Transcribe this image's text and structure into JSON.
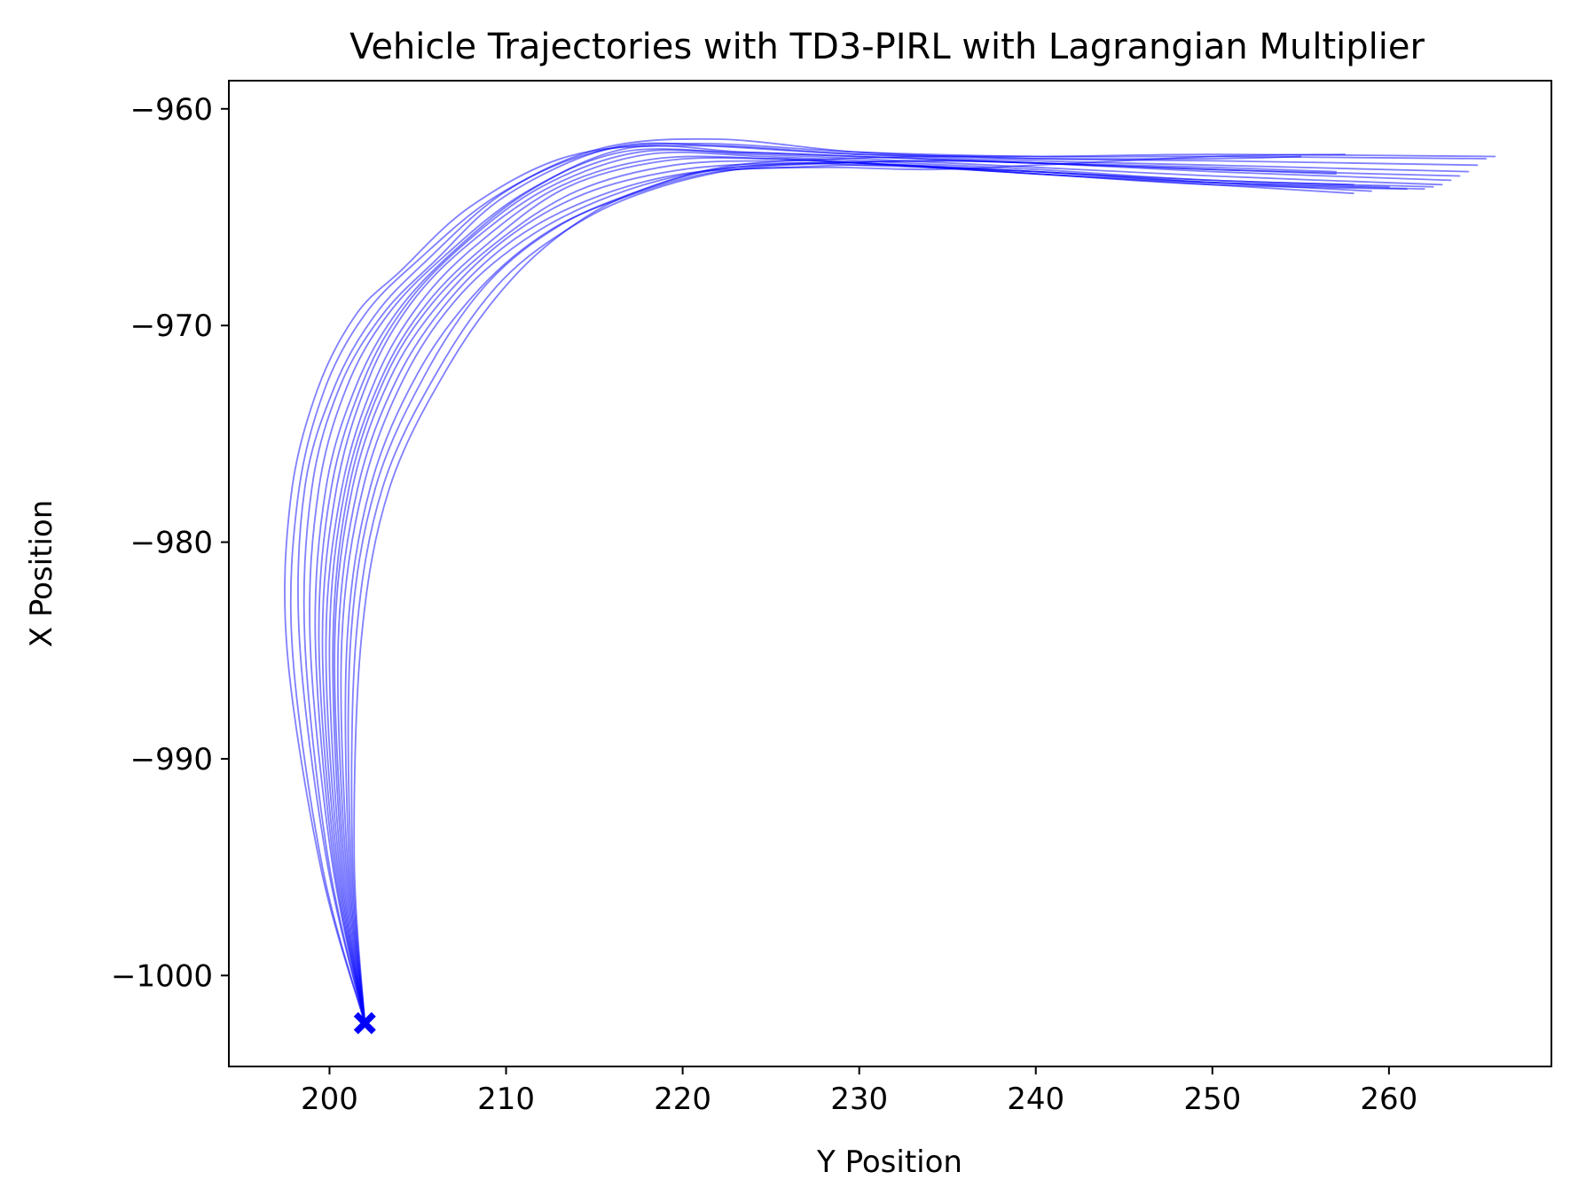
{
  "chart_data": {
    "type": "line",
    "title": "Vehicle Trajectories with TD3-PIRL with Lagrangian Multiplier",
    "xlabel": "Y Position",
    "ylabel": "X Position",
    "xlim": [
      194.3,
      269.2
    ],
    "ylim": [
      -1004.2,
      -958.7
    ],
    "xticks": [
      200,
      210,
      220,
      230,
      240,
      250,
      260
    ],
    "xtick_labels": [
      "200",
      "210",
      "220",
      "230",
      "240",
      "250",
      "260"
    ],
    "yticks": [
      -960,
      -970,
      -980,
      -990,
      -1000
    ],
    "ytick_labels": [
      "−960",
      "−970",
      "−980",
      "−990",
      "−1000"
    ],
    "grid": false,
    "line_color": "#0000ff",
    "line_alpha": 0.5,
    "start_marker": {
      "x": 202.0,
      "y": -1002.2,
      "symbol": "X",
      "color": "#0000ff"
    },
    "series": [
      {
        "name": "trajectory-1",
        "x": [
          202.0,
          199.5,
          197.6,
          197.8,
          199.3,
          201.5,
          204.0,
          208.0,
          213.5,
          220.0,
          230.0,
          240.0,
          250.0,
          266.0
        ],
        "y": [
          -1002.2,
          -995.0,
          -985.0,
          -978.0,
          -973.0,
          -969.5,
          -967.5,
          -964.5,
          -962.2,
          -961.7,
          -962.1,
          -962.2,
          -962.1,
          -962.2
        ]
      },
      {
        "name": "trajectory-2",
        "x": [
          202.0,
          199.6,
          197.9,
          198.2,
          199.7,
          202.0,
          205.0,
          209.5,
          215.0,
          221.0,
          230.0,
          240.0,
          250.0,
          265.5
        ],
        "y": [
          -1002.2,
          -995.0,
          -985.0,
          -978.0,
          -973.0,
          -969.5,
          -967.0,
          -964.0,
          -962.0,
          -961.6,
          -962.0,
          -962.2,
          -962.2,
          -962.3
        ]
      },
      {
        "name": "trajectory-3",
        "x": [
          202.0,
          199.8,
          198.3,
          198.6,
          200.3,
          202.6,
          205.5,
          210.0,
          215.5,
          222.0,
          230.0,
          240.0,
          250.0,
          265.0
        ],
        "y": [
          -1002.2,
          -994.5,
          -984.5,
          -977.5,
          -972.8,
          -969.5,
          -967.0,
          -963.8,
          -961.8,
          -961.4,
          -962.0,
          -962.3,
          -962.4,
          -962.6
        ]
      },
      {
        "name": "trajectory-4",
        "x": [
          202.0,
          199.9,
          198.6,
          199.0,
          200.6,
          203.0,
          206.0,
          210.0,
          216.0,
          222.0,
          230.0,
          240.0,
          250.0,
          264.5
        ],
        "y": [
          -1002.2,
          -994.5,
          -984.5,
          -977.5,
          -972.8,
          -969.5,
          -967.0,
          -964.0,
          -961.8,
          -961.7,
          -962.1,
          -962.4,
          -962.6,
          -962.9
        ]
      },
      {
        "name": "trajectory-5",
        "x": [
          202.0,
          200.1,
          198.9,
          199.4,
          201.0,
          203.3,
          206.5,
          211.0,
          216.5,
          223.0,
          230.0,
          240.0,
          250.0,
          264.0
        ],
        "y": [
          -1002.2,
          -994.5,
          -984.5,
          -977.5,
          -972.8,
          -969.5,
          -966.8,
          -963.9,
          -962.0,
          -962.0,
          -962.2,
          -962.5,
          -962.8,
          -963.1
        ]
      },
      {
        "name": "trajectory-6",
        "x": [
          202.0,
          200.2,
          199.2,
          199.8,
          201.5,
          203.8,
          207.0,
          211.5,
          217.0,
          223.5,
          230.0,
          240.0,
          250.0,
          263.5
        ],
        "y": [
          -1002.2,
          -994.5,
          -984.5,
          -977.5,
          -972.8,
          -969.4,
          -966.6,
          -963.7,
          -961.8,
          -962.0,
          -962.2,
          -962.5,
          -962.9,
          -963.3
        ]
      },
      {
        "name": "trajectory-7",
        "x": [
          202.0,
          200.3,
          199.4,
          200.1,
          201.9,
          204.2,
          207.4,
          212.0,
          217.5,
          224.0,
          230.0,
          240.0,
          250.0,
          263.0
        ],
        "y": [
          -1002.2,
          -994.5,
          -984.5,
          -977.5,
          -972.6,
          -969.2,
          -966.4,
          -963.6,
          -962.0,
          -962.1,
          -962.3,
          -962.7,
          -963.1,
          -963.5
        ]
      },
      {
        "name": "trajectory-8",
        "x": [
          202.0,
          200.4,
          199.6,
          200.4,
          202.2,
          204.6,
          207.8,
          212.5,
          218.0,
          224.5,
          230.0,
          240.0,
          250.0,
          262.5
        ],
        "y": [
          -1002.2,
          -994.5,
          -984.5,
          -977.5,
          -972.5,
          -969.0,
          -966.3,
          -963.6,
          -962.1,
          -962.2,
          -962.4,
          -962.8,
          -963.3,
          -963.6
        ]
      },
      {
        "name": "trajectory-9",
        "x": [
          202.0,
          200.5,
          199.8,
          200.7,
          202.6,
          205.1,
          208.3,
          213.0,
          218.5,
          225.0,
          230.0,
          240.0,
          250.0,
          262.0
        ],
        "y": [
          -1002.2,
          -994.5,
          -984.5,
          -977.5,
          -972.5,
          -969.0,
          -966.3,
          -963.6,
          -962.3,
          -962.3,
          -962.5,
          -962.9,
          -963.4,
          -963.7
        ]
      },
      {
        "name": "trajectory-10",
        "x": [
          202.0,
          200.6,
          200.0,
          200.9,
          202.9,
          205.5,
          209.0,
          213.5,
          219.0,
          225.0,
          230.0,
          240.0,
          250.0,
          261.0
        ],
        "y": [
          -1002.2,
          -994.5,
          -984.5,
          -977.5,
          -972.5,
          -969.0,
          -966.2,
          -963.6,
          -962.4,
          -962.3,
          -962.5,
          -963.0,
          -963.5,
          -963.7
        ]
      },
      {
        "name": "trajectory-11",
        "x": [
          202.0,
          200.7,
          200.2,
          201.1,
          203.1,
          205.8,
          209.4,
          214.0,
          219.5,
          225.5,
          230.0,
          240.0,
          250.0,
          260.0
        ],
        "y": [
          -1002.2,
          -994.5,
          -984.5,
          -977.5,
          -972.5,
          -969.0,
          -966.2,
          -963.8,
          -962.6,
          -962.4,
          -962.5,
          -963.0,
          -963.4,
          -963.6
        ]
      },
      {
        "name": "trajectory-12",
        "x": [
          202.0,
          200.8,
          200.3,
          201.3,
          203.4,
          206.2,
          210.0,
          214.5,
          220.0,
          226.0,
          230.0,
          240.0,
          250.0,
          259.0
        ],
        "y": [
          -1002.2,
          -994.5,
          -984.5,
          -977.5,
          -972.5,
          -969.0,
          -966.0,
          -963.9,
          -962.8,
          -962.5,
          -962.6,
          -962.9,
          -963.4,
          -963.8
        ]
      },
      {
        "name": "trajectory-13",
        "x": [
          202.0,
          200.9,
          200.5,
          201.6,
          203.8,
          206.8,
          210.5,
          215.0,
          220.0,
          226.0,
          232.0,
          240.0,
          250.0,
          258.0
        ],
        "y": [
          -1002.2,
          -994.5,
          -984.5,
          -977.5,
          -972.5,
          -968.8,
          -966.0,
          -964.1,
          -963.0,
          -962.7,
          -962.6,
          -963.0,
          -963.5,
          -963.9
        ]
      },
      {
        "name": "trajectory-14",
        "x": [
          202.0,
          201.0,
          200.7,
          201.9,
          204.3,
          207.5,
          211.5,
          216.0,
          221.0,
          227.0,
          233.0,
          240.0,
          250.0,
          258.0
        ],
        "y": [
          -1002.2,
          -994.5,
          -984.5,
          -977.5,
          -972.3,
          -968.5,
          -965.8,
          -964.0,
          -962.9,
          -962.5,
          -962.6,
          -962.9,
          -963.3,
          -963.5
        ]
      },
      {
        "name": "trajectory-15",
        "x": [
          202.0,
          201.1,
          201.0,
          202.3,
          205.0,
          208.5,
          212.5,
          217.0,
          222.0,
          228.0,
          234.0,
          240.0,
          250.0,
          257.5
        ],
        "y": [
          -1002.2,
          -994.5,
          -984.5,
          -977.5,
          -972.2,
          -968.3,
          -965.6,
          -964.0,
          -962.9,
          -962.7,
          -962.8,
          -962.6,
          -962.2,
          -962.1
        ]
      },
      {
        "name": "trajectory-16",
        "x": [
          202.0,
          201.2,
          201.2,
          202.6,
          205.6,
          209.0,
          213.0,
          217.5,
          222.0,
          228.0,
          234.0,
          240.0,
          250.0,
          257.0
        ],
        "y": [
          -1002.2,
          -994.5,
          -984.5,
          -977.5,
          -972.0,
          -968.0,
          -965.4,
          -963.8,
          -962.8,
          -962.5,
          -962.4,
          -962.5,
          -962.8,
          -963.0
        ]
      },
      {
        "name": "trajectory-17",
        "x": [
          202.0,
          201.3,
          201.5,
          203.0,
          206.2,
          209.8,
          214.0,
          218.0,
          223.0,
          229.0,
          235.0,
          240.0,
          250.0,
          257.0
        ],
        "y": [
          -1002.2,
          -994.5,
          -984.5,
          -977.5,
          -972.0,
          -967.9,
          -965.3,
          -963.8,
          -962.8,
          -962.5,
          -962.4,
          -962.5,
          -962.7,
          -962.9
        ]
      },
      {
        "name": "trajectory-18",
        "x": [
          202.0,
          201.4,
          201.8,
          203.4,
          206.8,
          210.5,
          214.5,
          218.5,
          223.0,
          229.0,
          235.0,
          240.0,
          250.0,
          255.0
        ],
        "y": [
          -1002.2,
          -994.5,
          -984.5,
          -977.5,
          -971.8,
          -967.7,
          -965.0,
          -963.5,
          -962.6,
          -962.3,
          -962.2,
          -962.3,
          -962.3,
          -962.2
        ]
      }
    ]
  }
}
